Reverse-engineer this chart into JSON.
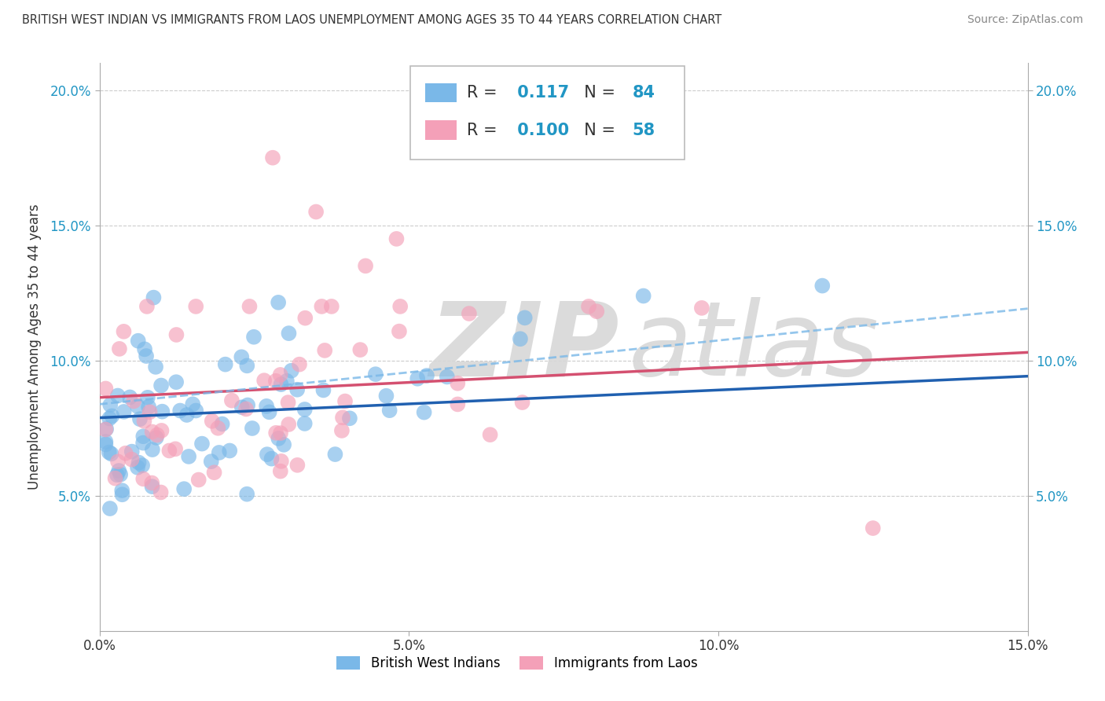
{
  "title": "BRITISH WEST INDIAN VS IMMIGRANTS FROM LAOS UNEMPLOYMENT AMONG AGES 35 TO 44 YEARS CORRELATION CHART",
  "source": "Source: ZipAtlas.com",
  "ylabel": "Unemployment Among Ages 35 to 44 years",
  "xlim": [
    0.0,
    0.15
  ],
  "ylim": [
    0.0,
    0.21
  ],
  "blue_R": 0.117,
  "blue_N": 84,
  "pink_R": 0.1,
  "pink_N": 58,
  "blue_color": "#7ab8e8",
  "pink_color": "#f4a0b8",
  "blue_line_color": "#2060b0",
  "pink_line_color": "#d45070",
  "dashed_line_color": "#7ab8e8",
  "legend_label_blue": "British West Indians",
  "legend_label_pink": "Immigrants from Laos",
  "text_color": "#333333",
  "blue_label_color": "#2196c4",
  "grid_color": "#cccccc",
  "watermark_color": "#d8d8d8",
  "background_color": "#ffffff"
}
